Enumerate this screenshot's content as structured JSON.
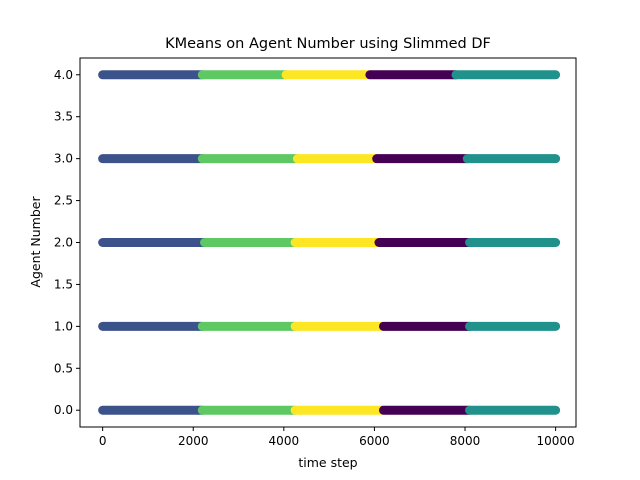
{
  "chart_data": {
    "type": "scatter",
    "title": "KMeans on Agent Number using Slimmed DF",
    "xlabel": "time step",
    "ylabel": "Agent Number",
    "xlim": [
      -500,
      10450
    ],
    "ylim": [
      -0.2,
      4.2
    ],
    "xticks": [
      0,
      2000,
      4000,
      6000,
      8000,
      10000
    ],
    "xtick_labels": [
      "0",
      "2000",
      "4000",
      "6000",
      "8000",
      "10000"
    ],
    "yticks": [
      0.0,
      0.5,
      1.0,
      1.5,
      2.0,
      2.5,
      3.0,
      3.5,
      4.0
    ],
    "ytick_labels": [
      "0.0",
      "0.5",
      "1.0",
      "1.5",
      "2.0",
      "2.5",
      "3.0",
      "3.5",
      "4.0"
    ],
    "grid": false,
    "legend": "none",
    "cluster_colors": {
      "0": "#440154",
      "1": "#3b528b",
      "2": "#21918c",
      "3": "#5ec962",
      "4": "#fde725"
    },
    "series": [
      {
        "y": 0,
        "segments": [
          {
            "cluster": 1,
            "x_start": 0,
            "x_end": 2200
          },
          {
            "cluster": 3,
            "x_start": 2200,
            "x_end": 4250
          },
          {
            "cluster": 4,
            "x_start": 4250,
            "x_end": 6200
          },
          {
            "cluster": 0,
            "x_start": 6200,
            "x_end": 8100
          },
          {
            "cluster": 2,
            "x_start": 8100,
            "x_end": 10000
          }
        ]
      },
      {
        "y": 1,
        "segments": [
          {
            "cluster": 1,
            "x_start": 0,
            "x_end": 2200
          },
          {
            "cluster": 3,
            "x_start": 2200,
            "x_end": 4250
          },
          {
            "cluster": 4,
            "x_start": 4250,
            "x_end": 6200
          },
          {
            "cluster": 0,
            "x_start": 6200,
            "x_end": 8100
          },
          {
            "cluster": 2,
            "x_start": 8100,
            "x_end": 10000
          }
        ]
      },
      {
        "y": 2,
        "segments": [
          {
            "cluster": 1,
            "x_start": 0,
            "x_end": 2250
          },
          {
            "cluster": 3,
            "x_start": 2250,
            "x_end": 4250
          },
          {
            "cluster": 4,
            "x_start": 4250,
            "x_end": 6100
          },
          {
            "cluster": 0,
            "x_start": 6100,
            "x_end": 8100
          },
          {
            "cluster": 2,
            "x_start": 8100,
            "x_end": 10000
          }
        ]
      },
      {
        "y": 3,
        "segments": [
          {
            "cluster": 1,
            "x_start": 0,
            "x_end": 2200
          },
          {
            "cluster": 3,
            "x_start": 2200,
            "x_end": 4300
          },
          {
            "cluster": 4,
            "x_start": 4300,
            "x_end": 6050
          },
          {
            "cluster": 0,
            "x_start": 6050,
            "x_end": 8050
          },
          {
            "cluster": 2,
            "x_start": 8050,
            "x_end": 10000
          }
        ]
      },
      {
        "y": 4,
        "segments": [
          {
            "cluster": 1,
            "x_start": 0,
            "x_end": 2200
          },
          {
            "cluster": 3,
            "x_start": 2200,
            "x_end": 4050
          },
          {
            "cluster": 4,
            "x_start": 4050,
            "x_end": 5900
          },
          {
            "cluster": 0,
            "x_start": 5900,
            "x_end": 7800
          },
          {
            "cluster": 2,
            "x_start": 7800,
            "x_end": 10000
          }
        ]
      }
    ]
  }
}
